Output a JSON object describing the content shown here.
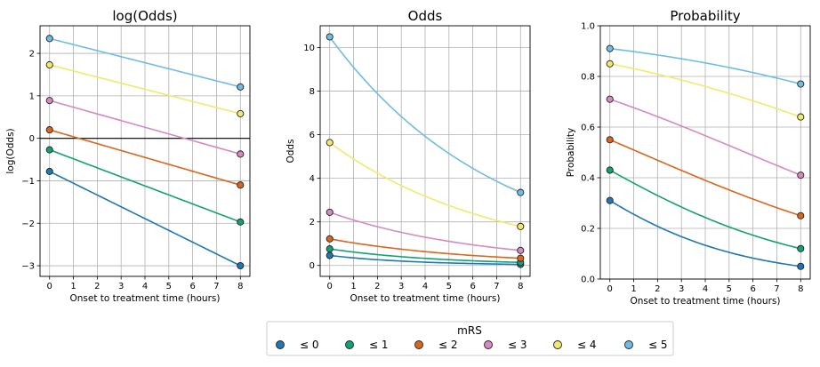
{
  "legend": {
    "title": "mRS",
    "entries": [
      {
        "label": "≤ 0",
        "color": "#1f77b4"
      },
      {
        "label": "≤ 1",
        "color": "#11a177"
      },
      {
        "label": "≤ 2",
        "color": "#d9661b"
      },
      {
        "label": "≤ 3",
        "color": "#d58ac0"
      },
      {
        "label": "≤ 4",
        "color": "#f2e96b"
      },
      {
        "label": "≤ 5",
        "color": "#6fbde3"
      }
    ]
  },
  "chart_data": [
    {
      "type": "line",
      "title": "log(Odds)",
      "xlabel": "Onset to treatment time (hours)",
      "ylabel": "log(Odds)",
      "xlim": [
        -0.4,
        8.4
      ],
      "ylim": [
        -3.25,
        2.65
      ],
      "xticks": [
        0,
        1,
        2,
        3,
        4,
        5,
        6,
        7,
        8
      ],
      "yticks": [
        -3,
        -2,
        -1,
        0,
        1,
        2
      ],
      "ytick_labels": [
        "−3",
        "−2",
        "−1",
        "0",
        "1",
        "2"
      ],
      "grid": true,
      "zero_line": true,
      "transform": "linear",
      "x": [
        0,
        8
      ],
      "series": [
        {
          "name": "≤ 0",
          "values": [
            -0.78,
            -3.0
          ]
        },
        {
          "name": "≤ 1",
          "values": [
            -0.27,
            -1.97
          ]
        },
        {
          "name": "≤ 2",
          "values": [
            0.2,
            -1.1
          ]
        },
        {
          "name": "≤ 3",
          "values": [
            0.89,
            -0.37
          ]
        },
        {
          "name": "≤ 4",
          "values": [
            1.73,
            0.58
          ]
        },
        {
          "name": "≤ 5",
          "values": [
            2.35,
            1.21
          ]
        }
      ]
    },
    {
      "type": "line",
      "title": "Odds",
      "xlabel": "Onset to treatment time (hours)",
      "ylabel": "Odds",
      "xlim": [
        -0.4,
        8.4
      ],
      "ylim": [
        -0.5,
        11.0
      ],
      "xticks": [
        0,
        1,
        2,
        3,
        4,
        5,
        6,
        7,
        8
      ],
      "yticks": [
        0,
        2,
        4,
        6,
        8,
        10
      ],
      "ytick_labels": [
        "0",
        "2",
        "4",
        "6",
        "8",
        "10"
      ],
      "grid": true,
      "zero_line": false,
      "transform": "exp",
      "x": [
        0,
        8
      ],
      "series": [
        {
          "name": "≤ 0",
          "values": [
            0.46,
            0.05
          ]
        },
        {
          "name": "≤ 1",
          "values": [
            0.76,
            0.14
          ]
        },
        {
          "name": "≤ 2",
          "values": [
            1.22,
            0.33
          ]
        },
        {
          "name": "≤ 3",
          "values": [
            2.44,
            0.69
          ]
        },
        {
          "name": "≤ 4",
          "values": [
            5.64,
            1.79
          ]
        },
        {
          "name": "≤ 5",
          "values": [
            10.49,
            3.35
          ]
        }
      ]
    },
    {
      "type": "line",
      "title": "Probability",
      "xlabel": "Onset to treatment time (hours)",
      "ylabel": "Probability",
      "xlim": [
        -0.4,
        8.4
      ],
      "ylim": [
        0.0,
        1.0
      ],
      "xticks": [
        0,
        1,
        2,
        3,
        4,
        5,
        6,
        7,
        8
      ],
      "yticks": [
        0.0,
        0.2,
        0.4,
        0.6,
        0.8,
        1.0
      ],
      "ytick_labels": [
        "0.0",
        "0.2",
        "0.4",
        "0.6",
        "0.8",
        "1.0"
      ],
      "grid": true,
      "zero_line": false,
      "transform": "logistic",
      "x": [
        0,
        8
      ],
      "series": [
        {
          "name": "≤ 0",
          "values": [
            0.31,
            0.05
          ]
        },
        {
          "name": "≤ 1",
          "values": [
            0.43,
            0.12
          ]
        },
        {
          "name": "≤ 2",
          "values": [
            0.55,
            0.25
          ]
        },
        {
          "name": "≤ 3",
          "values": [
            0.71,
            0.41
          ]
        },
        {
          "name": "≤ 4",
          "values": [
            0.85,
            0.64
          ]
        },
        {
          "name": "≤ 5",
          "values": [
            0.91,
            0.77
          ]
        }
      ]
    }
  ]
}
